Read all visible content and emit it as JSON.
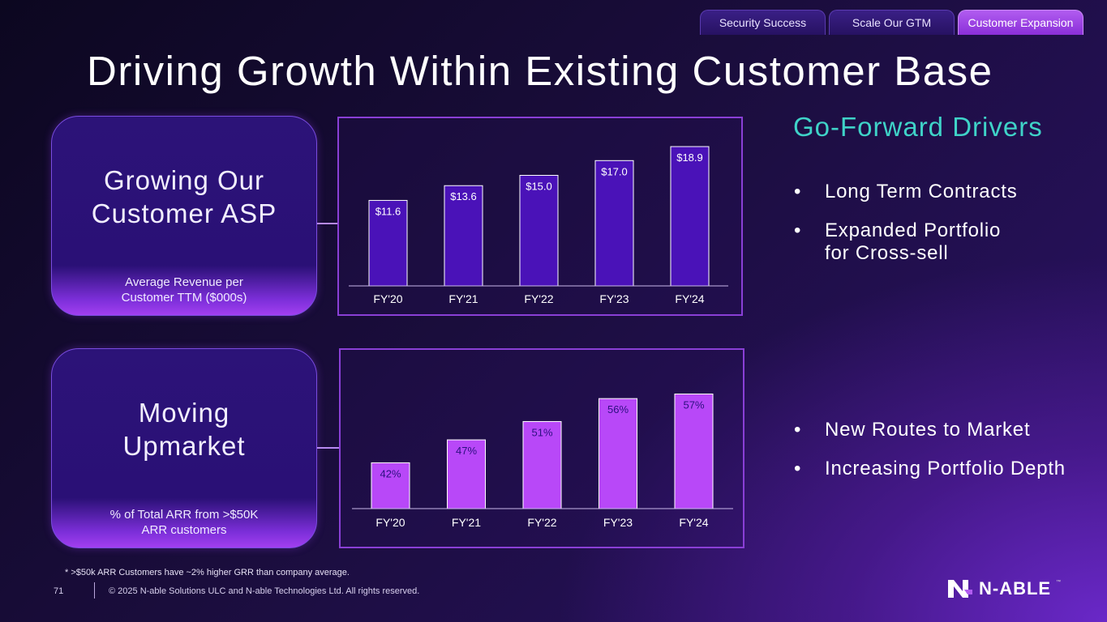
{
  "tabs": [
    {
      "label": "Security Success",
      "active": false
    },
    {
      "label": "Scale Our GTM",
      "active": false
    },
    {
      "label": "Customer Expansion",
      "active": true
    }
  ],
  "title": "Driving Growth Within Existing Customer Base",
  "cards": [
    {
      "title": "Growing Our Customer ASP",
      "subtitle": "Average Revenue per Customer TTM ($000s)"
    },
    {
      "title": "Moving Upmarket",
      "subtitle": "% of Total ARR from >$50K ARR customers"
    }
  ],
  "chart_data": [
    {
      "type": "bar",
      "title": "Average Revenue per Customer TTM ($000s)",
      "categories": [
        "FY'20",
        "FY'21",
        "FY'22",
        "FY'23",
        "FY'24"
      ],
      "values": [
        11.6,
        13.6,
        15.0,
        17.0,
        18.9
      ],
      "labels": [
        "$11.6",
        "$13.6",
        "$15.0",
        "$17.0",
        "$18.9"
      ],
      "ylim": [
        0,
        20
      ],
      "bar_color": "#4a12b8",
      "label_color": "#ffffff",
      "grid": false
    },
    {
      "type": "bar",
      "title": "% of Total ARR from >$50K ARR customers",
      "categories": [
        "FY'20",
        "FY'21",
        "FY'22",
        "FY'23",
        "FY'24"
      ],
      "values": [
        42,
        47,
        51,
        56,
        57
      ],
      "labels": [
        "42%",
        "47%",
        "51%",
        "56%",
        "57%"
      ],
      "ylim": [
        32,
        58.5
      ],
      "bar_color": "#b848f8",
      "label_color": "#2c1080",
      "grid": false
    }
  ],
  "drivers": {
    "title": "Go-Forward Drivers",
    "group1": [
      "Long Term Contracts",
      "Expanded Portfolio\nfor Cross-sell"
    ],
    "group2": [
      "New Routes to Market",
      "Increasing Portfolio Depth"
    ]
  },
  "footer": {
    "footnote": "* >$50k ARR Customers have ~2% higher GRR than company average.",
    "page_number": "71",
    "copyright": "© 2025 N-able Solutions ULC and N-able Technologies Ltd. All rights reserved.",
    "logo_text": "N-ABLE",
    "logo_tm": "™"
  },
  "colors": {
    "accent_teal": "#3fd3c8",
    "chart_border": "#8a3fd6"
  }
}
